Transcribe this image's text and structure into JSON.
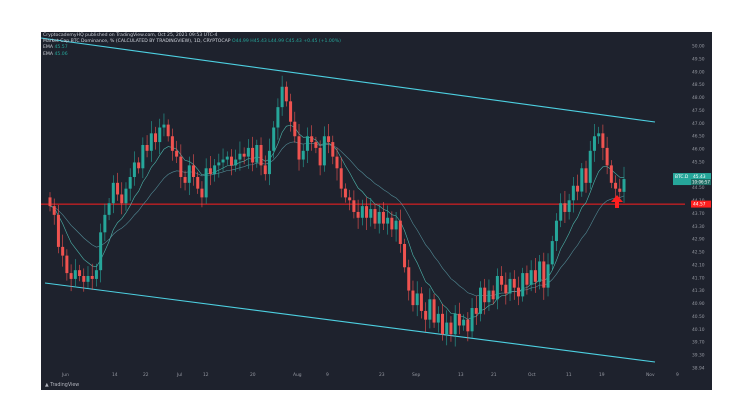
{
  "header": {
    "publish_line": "CryptocademyHQ published on TradingView.com, Oct 25, 2021 09:53 UTC-4",
    "symbol_line": "Market Cap BTC Dominance, % (CALCULATED BY TRADINGVIEW), 1D, CRYPTOCAP",
    "ohlc": "O44.99 H45.43 L44.99 C45.43 +0.45 (+1.00%)",
    "ema1_label": "EMA",
    "ema1_value": "45.57",
    "ema2_label": "EMA",
    "ema2_value": "45.06"
  },
  "price_tag": {
    "symbol": "BTC.D",
    "value": "45.43",
    "countdown": "10:06:57"
  },
  "support_tag": "44.57",
  "footer_logo": "TradingView",
  "colors": {
    "background": "#1e222d",
    "up": "#26a69a",
    "down": "#ef5350",
    "channel": "#4dd0e1",
    "support": "#ff1f1f",
    "ema": "#4db6ac",
    "arrow": "#ff1f1f"
  },
  "chart_data": {
    "type": "candlestick",
    "x_tick_labels": [
      "Jun",
      "14",
      "22",
      "Jul",
      "12",
      "20",
      "Aug",
      "9",
      "23",
      "Sep",
      "13",
      "21",
      "Oct",
      "11",
      "19",
      "Nov",
      "9"
    ],
    "y_tick_labels": [
      "50.00",
      "49.50",
      "49.00",
      "48.50",
      "48.00",
      "47.50",
      "47.00",
      "46.50",
      "46.00",
      "45.50",
      "45.00",
      "44.50",
      "44.10",
      "43.70",
      "43.30",
      "42.90",
      "42.50",
      "42.10",
      "41.70",
      "41.30",
      "40.90",
      "40.50",
      "40.10",
      "39.70",
      "39.30",
      "38.94"
    ],
    "ylim": [
      38.94,
      50.0
    ],
    "support_level": 44.57,
    "current_price": 45.43,
    "closes": [
      44.5,
      44.2,
      43.1,
      42.8,
      42.2,
      42.0,
      42.3,
      42.1,
      41.9,
      42.1,
      42.0,
      42.3,
      43.6,
      44.2,
      44.6,
      45.3,
      44.9,
      44.6,
      45.1,
      45.5,
      46.0,
      45.8,
      46.6,
      46.4,
      47.0,
      46.7,
      47.2,
      47.3,
      46.9,
      46.4,
      46.2,
      45.5,
      45.3,
      45.9,
      45.5,
      45.1,
      44.8,
      45.8,
      45.6,
      45.9,
      46.0,
      46.1,
      46.2,
      45.9,
      46.1,
      46.3,
      46.2,
      46.5,
      46.0,
      46.6,
      45.9,
      45.6,
      46.4,
      47.2,
      47.9,
      48.6,
      48.1,
      47.4,
      46.9,
      46.1,
      46.4,
      46.9,
      46.7,
      46.5,
      45.9,
      46.9,
      46.7,
      46.2,
      45.8,
      45.1,
      44.8,
      44.7,
      44.3,
      44.1,
      44.5,
      44.1,
      44.4,
      43.9,
      44.3,
      43.9,
      44.1,
      43.7,
      44.0,
      43.2,
      42.4,
      41.6,
      41.1,
      41.5,
      40.9,
      40.6,
      41.3,
      40.5,
      40.8,
      40.1,
      40.5,
      40.1,
      40.8,
      40.4,
      40.6,
      40.2,
      41.0,
      40.8,
      41.7,
      41.2,
      41.6,
      41.3,
      42.1,
      41.8,
      41.5,
      42.0,
      41.7,
      41.4,
      42.2,
      41.8,
      42.3,
      41.9,
      42.6,
      41.7,
      42.5,
      43.3,
      44.0,
      44.6,
      44.3,
      44.7,
      45.2,
      45.0,
      45.8,
      45.3,
      46.4,
      46.9,
      47.0,
      46.5,
      45.9,
      45.3,
      45.1,
      44.99,
      45.43
    ],
    "ema_fast_label": "EMA 45.57",
    "ema_slow_label": "EMA 45.06"
  }
}
